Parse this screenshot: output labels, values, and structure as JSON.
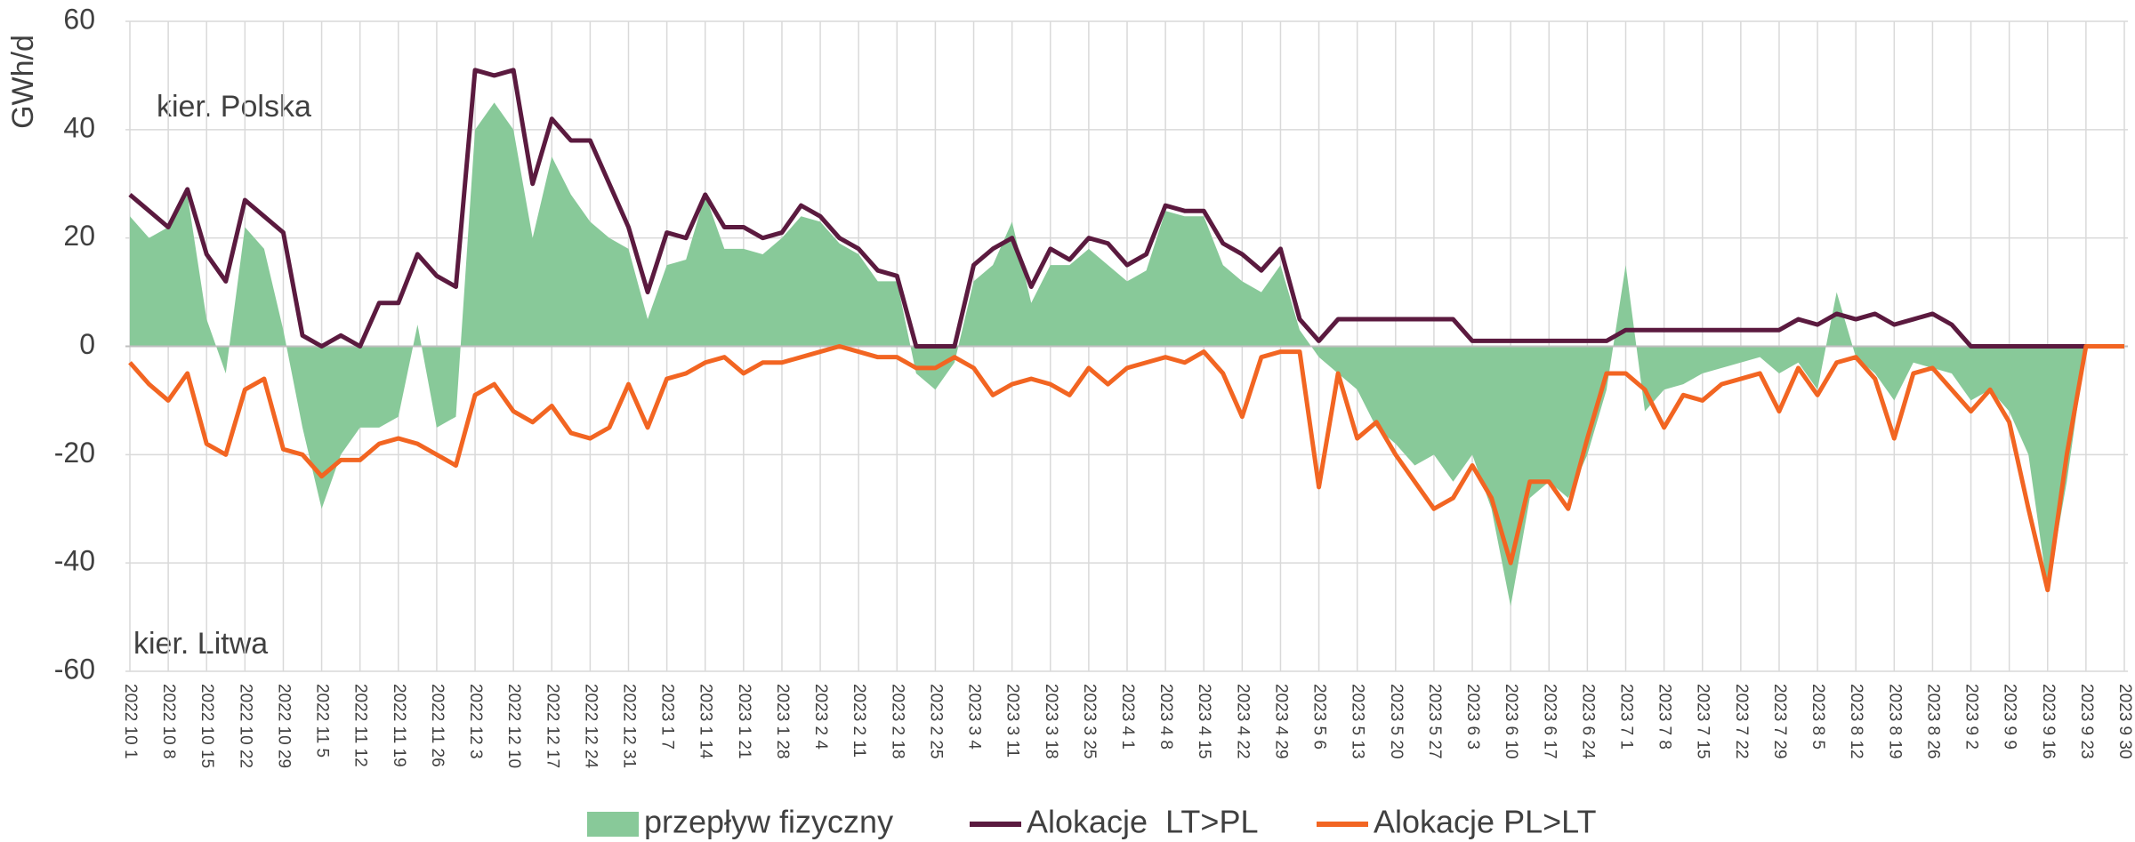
{
  "chart_data": {
    "type": "area-line",
    "y_label": "GWh/d",
    "annotations": [
      "kier. Polska",
      "kier. Litwa"
    ],
    "categories": [
      "2022 10 1",
      null,
      "2022 10 8",
      null,
      "2022 10 15",
      null,
      "2022 10 22",
      null,
      "2022 10 29",
      null,
      "2022 11 5",
      null,
      "2022 11 12",
      null,
      "2022 11 19",
      null,
      "2022 11 26",
      null,
      "2022 12 3",
      null,
      "2022 12 10",
      null,
      "2022 12 17",
      null,
      "2022 12 24",
      null,
      "2022 12 31",
      null,
      "2023 1 7",
      null,
      "2023 1 14",
      null,
      "2023 1 21",
      null,
      "2023 1 28",
      null,
      "2023 2 4",
      null,
      "2023 2 11",
      null,
      "2023 2 18",
      null,
      "2023 2 25",
      null,
      "2023 3 4",
      null,
      "2023 3 11",
      null,
      "2023 3 18",
      null,
      "2023 3 25",
      null,
      "2023 4 1",
      null,
      "2023 4 8",
      null,
      "2023 4 15",
      null,
      "2023 4 22",
      null,
      "2023 4 29",
      null,
      "2023 5 6",
      null,
      "2023 5 13",
      null,
      "2023 5 20",
      null,
      "2023 5 27",
      null,
      "2023 6 3",
      null,
      "2023 6 10",
      null,
      "2023 6 17",
      null,
      "2023 6 24",
      null,
      "2023 7 1",
      null,
      "2023 7 8",
      null,
      "2023 7 15",
      null,
      "2023 7 22",
      null,
      "2023 7 29",
      null,
      "2023 8 5",
      null,
      "2023 8 12",
      null,
      "2023 8 19",
      null,
      "2023 8 26",
      null,
      "2023 9 2",
      null,
      "2023 9 9",
      null,
      "2023 9 16",
      null,
      "2023 9 23",
      null,
      "2023 9 30"
    ],
    "series": [
      {
        "name": "przepływ fizyczny",
        "kind": "area",
        "color": "#88c999",
        "values": [
          24,
          20,
          22,
          28,
          5,
          -5,
          22,
          18,
          3,
          -15,
          -30,
          -20,
          -15,
          -15,
          -13,
          4,
          -15,
          -13,
          40,
          45,
          40,
          20,
          35,
          28,
          23,
          20,
          18,
          5,
          15,
          16,
          28,
          18,
          18,
          17,
          20,
          24,
          23,
          19,
          17,
          12,
          12,
          -5,
          -8,
          -3,
          12,
          15,
          23,
          8,
          15,
          15,
          18,
          15,
          12,
          14,
          25,
          24,
          24,
          15,
          12,
          10,
          15,
          3,
          -2,
          -5,
          -8,
          -15,
          -18,
          -22,
          -20,
          -25,
          -20,
          -30,
          -48,
          -28,
          -25,
          -28,
          -20,
          -8,
          15,
          -12,
          -8,
          -7,
          -5,
          -4,
          -3,
          -2,
          -5,
          -3,
          -8,
          10,
          -2,
          -5,
          -10,
          -3,
          -4,
          -5,
          -10,
          -8,
          -12,
          -20,
          -45,
          -25,
          0,
          0,
          0
        ]
      },
      {
        "name": "Alokacje  LT>PL",
        "kind": "line",
        "color": "#5b1a3f",
        "values": [
          28,
          25,
          22,
          29,
          17,
          12,
          27,
          24,
          21,
          2,
          0,
          2,
          0,
          8,
          8,
          17,
          13,
          11,
          51,
          50,
          51,
          30,
          42,
          38,
          38,
          30,
          22,
          10,
          21,
          20,
          28,
          22,
          22,
          20,
          21,
          26,
          24,
          20,
          18,
          14,
          13,
          0,
          0,
          0,
          15,
          18,
          20,
          11,
          18,
          16,
          20,
          19,
          15,
          17,
          26,
          25,
          25,
          19,
          17,
          14,
          18,
          5,
          1,
          5,
          5,
          5,
          5,
          5,
          5,
          5,
          1,
          1,
          1,
          1,
          1,
          1,
          1,
          1,
          3,
          3,
          3,
          3,
          3,
          3,
          3,
          3,
          3,
          5,
          4,
          6,
          5,
          6,
          4,
          5,
          6,
          4,
          0,
          0,
          0,
          0,
          0,
          0,
          0,
          0,
          0
        ]
      },
      {
        "name": "Alokacje PL>LT",
        "kind": "line",
        "color": "#f26522",
        "values": [
          -3,
          -7,
          -10,
          -5,
          -18,
          -20,
          -8,
          -6,
          -19,
          -20,
          -24,
          -21,
          -21,
          -18,
          -17,
          -18,
          -20,
          -22,
          -9,
          -7,
          -12,
          -14,
          -11,
          -16,
          -17,
          -15,
          -7,
          -15,
          -6,
          -5,
          -3,
          -2,
          -5,
          -3,
          -3,
          -2,
          -1,
          0,
          -1,
          -2,
          -2,
          -4,
          -4,
          -2,
          -4,
          -9,
          -7,
          -6,
          -7,
          -9,
          -4,
          -7,
          -4,
          -3,
          -2,
          -3,
          -1,
          -5,
          -13,
          -2,
          -1,
          -1,
          -26,
          -5,
          -17,
          -14,
          -20,
          -25,
          -30,
          -28,
          -22,
          -28,
          -40,
          -25,
          -25,
          -30,
          -17,
          -5,
          -5,
          -8,
          -15,
          -9,
          -10,
          -7,
          -6,
          -5,
          -12,
          -4,
          -9,
          -3,
          -2,
          -6,
          -17,
          -5,
          -4,
          -8,
          -12,
          -8,
          -14,
          -30,
          -45,
          -20,
          0,
          0,
          0
        ]
      }
    ],
    "ylim": [
      -60,
      60
    ],
    "yticks": [
      60,
      40,
      20,
      0,
      -20,
      -40,
      -60
    ],
    "grid": true
  }
}
